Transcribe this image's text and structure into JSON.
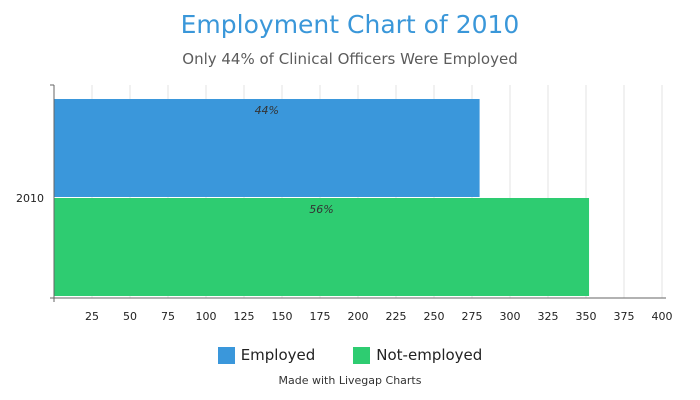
{
  "title": "Employment Chart of 2010",
  "subtitle": "Only 44% of Clinical Officers Were Employed",
  "credit": "Made with Livegap Charts",
  "colors": {
    "employed": "#3a97db",
    "not_employed": "#2ecc71",
    "title": "#3a97d9"
  },
  "chart_data": {
    "type": "bar",
    "orientation": "horizontal",
    "title": "Employment Chart of 2010",
    "subtitle": "Only 44% of Clinical Officers Were Employed",
    "categories": [
      "2010"
    ],
    "series": [
      {
        "name": "Employed",
        "values": [
          280
        ],
        "label": "44%",
        "color": "#3a97db"
      },
      {
        "name": "Not-employed",
        "values": [
          352
        ],
        "label": "56%",
        "color": "#2ecc71"
      }
    ],
    "xlim": [
      0,
      400
    ],
    "xticks": [
      "25",
      "50",
      "75",
      "100",
      "125",
      "150",
      "175",
      "200",
      "225",
      "250",
      "275",
      "300",
      "325",
      "350",
      "375",
      "400"
    ],
    "grid": true,
    "legend": "bottom"
  }
}
